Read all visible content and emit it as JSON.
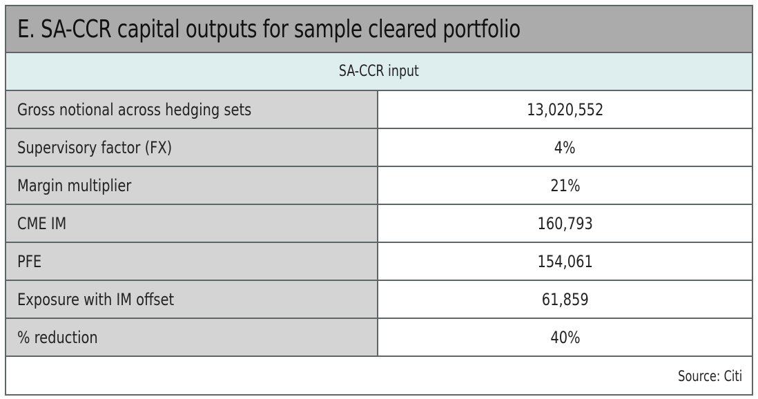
{
  "title": "E. SA-CCR capital outputs for sample cleared portfolio",
  "subheader": "SA-CCR input",
  "rows": [
    {
      "label": "Gross notional across hedging sets",
      "value": "13,020,552"
    },
    {
      "label": "Supervisory factor (FX)",
      "value": "4%"
    },
    {
      "label": "Margin multiplier",
      "value": "21%"
    },
    {
      "label": "CME IM",
      "value": "160,793"
    },
    {
      "label": "PFE",
      "value": "154,061"
    },
    {
      "label": "Exposure with IM offset",
      "value": "61,859"
    },
    {
      "label": "% reduction",
      "value": "40%"
    }
  ],
  "source": "Source: Citi",
  "colors": {
    "title_bg": "#ababab",
    "subheader_bg": "#deeeee",
    "label_bg": "#d4d4d4",
    "border": "#5f6466"
  }
}
